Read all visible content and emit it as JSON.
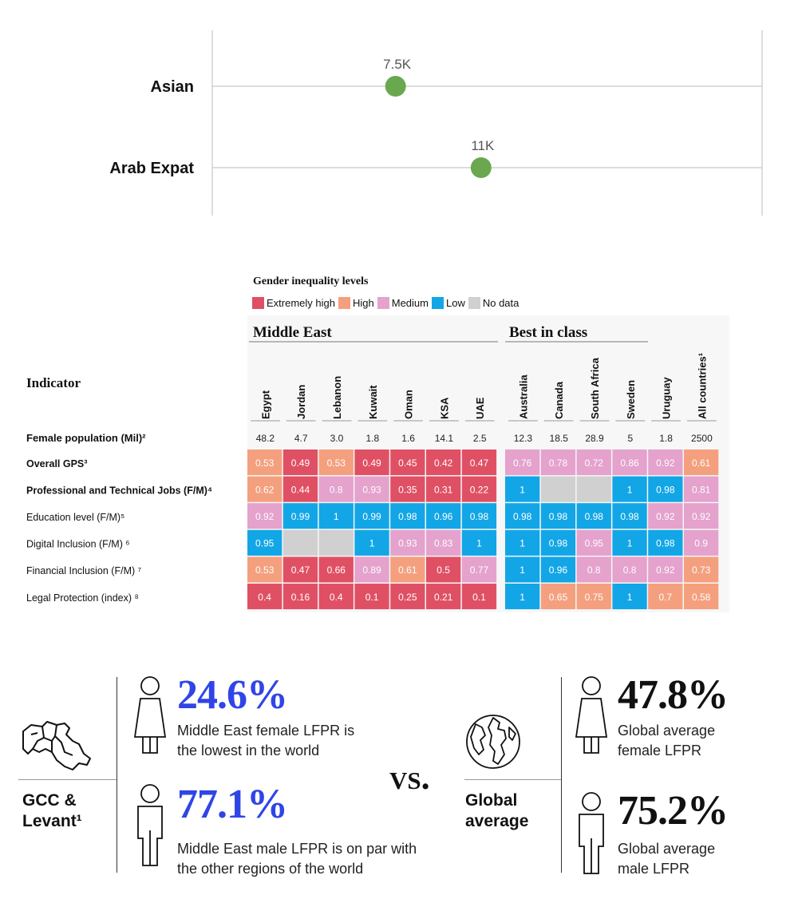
{
  "dot_chart": {
    "chart_data": {
      "type": "scatter",
      "categories": [
        "Asian",
        "Arab Expat"
      ],
      "values": [
        7.5,
        11
      ],
      "value_labels": [
        "7.5K",
        "11K"
      ],
      "xlim": [
        0,
        22.5
      ],
      "title": "",
      "xlabel": "",
      "ylabel": "",
      "dot_color": "#6aa84f"
    }
  },
  "heatmap": {
    "legend_title": "Gender inequality levels",
    "legend": [
      {
        "label": "Extremely high",
        "color": "#e05064"
      },
      {
        "label": "High",
        "color": "#f4a07e"
      },
      {
        "label": "Medium",
        "color": "#e4a2cd"
      },
      {
        "label": "Low",
        "color": "#12a6e6"
      },
      {
        "label": "No data",
        "color": "#d0d0d0"
      }
    ],
    "group_labels": [
      "Middle East",
      "Best in class"
    ],
    "indicator_header": "Indicator",
    "chart_data": {
      "type": "heatmap",
      "columns": [
        "Egypt",
        "Jordan",
        "Lebanon",
        "Kuwait",
        "Oman",
        "KSA",
        "UAE",
        "Australia",
        "Canada",
        "South Africa",
        "Sweden",
        "Uruguay",
        "All countries¹"
      ],
      "population_label": "Female population (Mil)²",
      "population": [
        "48.2",
        "4.7",
        "3.0",
        "1.8",
        "1.6",
        "14.1",
        "2.5",
        "12.3",
        "18.5",
        "28.9",
        "5",
        "1.8",
        "2500"
      ],
      "rows": [
        {
          "label": "Overall GPS³",
          "bold": true,
          "values": [
            "0.53",
            "0.49",
            "0.53",
            "0.49",
            "0.45",
            "0.42",
            "0.47",
            "0.76",
            "0.78",
            "0.72",
            "0.86",
            "0.92",
            "0.61"
          ],
          "levels": [
            "H",
            "E",
            "H",
            "E",
            "E",
            "E",
            "E",
            "M",
            "M",
            "M",
            "M",
            "M",
            "H"
          ]
        },
        {
          "label": "Professional and Technical Jobs (F/M)⁴",
          "bold": true,
          "values": [
            "0.62",
            "0.44",
            "0.8",
            "0.93",
            "0.35",
            "0.31",
            "0.22",
            "1",
            "",
            "",
            "1",
            "0.98",
            "0.81"
          ],
          "levels": [
            "H",
            "E",
            "M",
            "M",
            "E",
            "E",
            "E",
            "L",
            "N",
            "N",
            "L",
            "L",
            "M"
          ]
        },
        {
          "label": "Education level (F/M)⁵",
          "bold": false,
          "values": [
            "0.92",
            "0.99",
            "1",
            "0.99",
            "0.98",
            "0.96",
            "0.98",
            "0.98",
            "0.98",
            "0.98",
            "0.98",
            "0.92",
            "0.92"
          ],
          "levels": [
            "M",
            "L",
            "L",
            "L",
            "L",
            "L",
            "L",
            "L",
            "L",
            "L",
            "L",
            "M",
            "M"
          ]
        },
        {
          "label": "Digital Inclusion (F/M) ⁶",
          "bold": false,
          "values": [
            "0.95",
            "",
            "",
            "1",
            "0.93",
            "0.83",
            "1",
            "1",
            "0.98",
            "0.95",
            "1",
            "0.98",
            "0.9"
          ],
          "levels": [
            "L",
            "N",
            "N",
            "L",
            "M",
            "M",
            "L",
            "L",
            "L",
            "M",
            "L",
            "L",
            "M"
          ]
        },
        {
          "label": "Financial Inclusion (F/M) ⁷",
          "bold": false,
          "values": [
            "0.53",
            "0.47",
            "0.66",
            "0.89",
            "0.61",
            "0.5",
            "0.77",
            "1",
            "0.96",
            "0.8",
            "0.8",
            "0.92",
            "0.73"
          ],
          "levels": [
            "H",
            "E",
            "E",
            "M",
            "H",
            "E",
            "M",
            "L",
            "L",
            "M",
            "M",
            "M",
            "H"
          ]
        },
        {
          "label": "Legal Protection (index) ⁸",
          "bold": false,
          "values": [
            "0.4",
            "0.16",
            "0.4",
            "0.1",
            "0.25",
            "0.21",
            "0.1",
            "1",
            "0.65",
            "0.75",
            "1",
            "0.7",
            "0.58"
          ],
          "levels": [
            "E",
            "E",
            "E",
            "E",
            "E",
            "E",
            "E",
            "L",
            "H",
            "H",
            "L",
            "H",
            "H"
          ]
        }
      ]
    }
  },
  "lfpr": {
    "region_label_line1": "GCC &",
    "region_label_line2": "Levant¹",
    "global_label_line1": "Global",
    "global_label_line2": "average",
    "vs": "VS.",
    "me_female_pct": "24.6%",
    "me_female_desc_1": "Middle East female LFPR is",
    "me_female_desc_2": "the lowest in the world",
    "me_male_pct": "77.1%",
    "me_male_desc_1": "Middle East male LFPR is on par with",
    "me_male_desc_2": "the other regions of the world",
    "gl_female_pct": "47.8%",
    "gl_female_desc_1": "Global average",
    "gl_female_desc_2": "female LFPR",
    "gl_male_pct": "75.2%",
    "gl_male_desc_1": "Global average",
    "gl_male_desc_2": "male LFPR",
    "icons": [
      "map-icon",
      "female-figure-icon",
      "male-figure-icon",
      "globe-icon"
    ],
    "accent_color": "#2f45e6"
  }
}
